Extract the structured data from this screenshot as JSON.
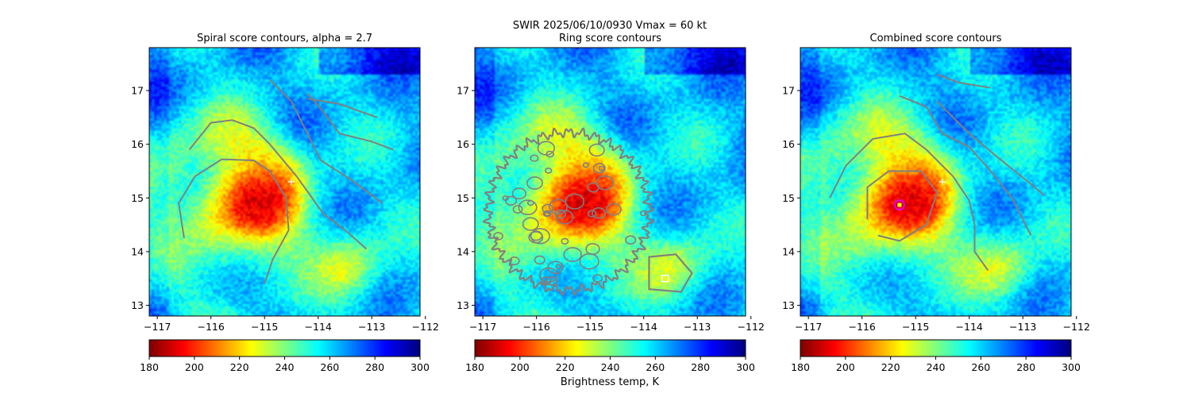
{
  "figure": {
    "suptitle": "SWIR  2025/06/10/0930    Vmax = 60 kt",
    "colorbar_label": "Brightness temp, K"
  },
  "chart_data": [
    {
      "type": "heatmap",
      "title": "Spiral score contours, alpha =  2.7",
      "x_ticks": [
        "−117",
        "−116",
        "−115",
        "−114",
        "−113",
        "−112"
      ],
      "y_ticks": [
        "13",
        "14",
        "15",
        "16",
        "17"
      ],
      "xlim": [
        -117.15,
        -112.1
      ],
      "ylim": [
        12.8,
        17.8
      ],
      "colorbar": {
        "colormap": "jet_r",
        "range": [
          180,
          300
        ],
        "ticks": [
          "180",
          "200",
          "220",
          "240",
          "260",
          "280",
          "300"
        ]
      },
      "storm_core": {
        "lon": -115.3,
        "lat": 14.9,
        "min_temp_K": 200
      },
      "overlay": {
        "contours": "spiral score",
        "contour_color": "#808080",
        "marker": "plus",
        "marker_lon": -114.5,
        "marker_lat": 15.3
      }
    },
    {
      "type": "heatmap",
      "title": "Ring score contours",
      "x_ticks": [
        "−117",
        "−116",
        "−115",
        "−114",
        "−113",
        "−112"
      ],
      "y_ticks": [
        "13",
        "14",
        "15",
        "16",
        "17"
      ],
      "xlim": [
        -117.15,
        -112.1
      ],
      "ylim": [
        12.8,
        17.8
      ],
      "colorbar": {
        "colormap": "jet_r",
        "range": [
          180,
          300
        ],
        "ticks": [
          "180",
          "200",
          "220",
          "240",
          "260",
          "280",
          "300"
        ]
      },
      "storm_core": {
        "lon": -115.3,
        "lat": 14.9,
        "min_temp_K": 200
      },
      "overlay": {
        "contours": "ring score",
        "contour_color": "#808080",
        "marker": "square",
        "marker_lon": -113.6,
        "marker_lat": 13.5
      }
    },
    {
      "type": "heatmap",
      "title": "Combined score contours",
      "x_ticks": [
        "−117",
        "−116",
        "−115",
        "−114",
        "−113",
        "−112"
      ],
      "y_ticks": [
        "13",
        "14",
        "15",
        "16",
        "17"
      ],
      "xlim": [
        -117.15,
        -112.1
      ],
      "ylim": [
        12.8,
        17.8
      ],
      "colorbar": {
        "colormap": "jet_r",
        "range": [
          180,
          300
        ],
        "ticks": [
          "180",
          "200",
          "220",
          "240",
          "260",
          "280",
          "300"
        ]
      },
      "storm_core": {
        "lon": -115.3,
        "lat": 14.9,
        "min_temp_K": 200
      },
      "overlay": {
        "contours": "combined score",
        "contour_color": "#808080",
        "marker": "circle",
        "marker_color": "#e000e0",
        "marker_lon": -115.3,
        "marker_lat": 14.87,
        "plus_lon": -114.5,
        "plus_lat": 15.3
      }
    }
  ]
}
